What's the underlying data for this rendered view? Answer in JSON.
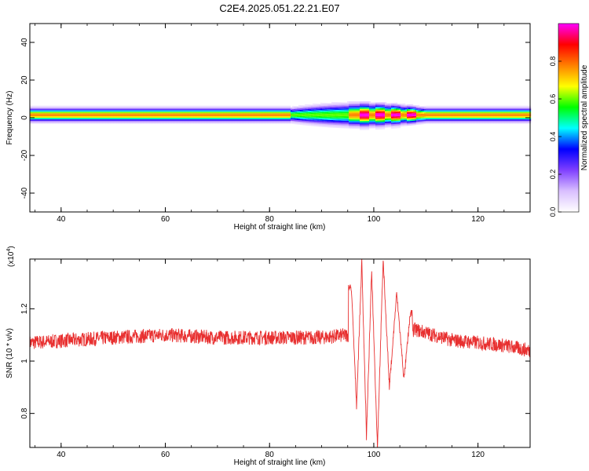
{
  "figure": {
    "title": "C2E4.2025.051.22.21.E07"
  },
  "chart_data": [
    {
      "type": "heatmap",
      "xlabel": "Height of straight line (km)",
      "ylabel": "Frequency (Hz)",
      "xlim": [
        34,
        130
      ],
      "ylim": [
        -50,
        50
      ],
      "xticks": [
        40,
        60,
        80,
        100,
        120
      ],
      "yticks": [
        -40,
        -20,
        0,
        20,
        40
      ],
      "grid": false,
      "description_of_energy": {
        "band_center_hz": 1.5,
        "band_halfwidth_hz": 4,
        "broadening_region_km": [
          84,
          110
        ],
        "hotspots_km": [
          98,
          101,
          104,
          107
        ]
      },
      "colorbar": {
        "label": "Normalized spectral amplitude",
        "range": [
          0,
          1
        ],
        "ticks": [
          0.0,
          0.2,
          0.4,
          0.6,
          0.8
        ],
        "colors": [
          "#ffffff",
          "#d9bfff",
          "#7f3fff",
          "#0000ff",
          "#00ffff",
          "#00ff00",
          "#ffff00",
          "#ff8000",
          "#ff0000",
          "#ff00ff"
        ]
      }
    },
    {
      "type": "line",
      "xlabel": "Height of straight line (km)",
      "ylabel": "SNR (10 * v/v)",
      "yscale_label": "(x10",
      "yscale_exp": "4",
      "yscale_close": ")",
      "xlim": [
        34,
        130
      ],
      "ylim": [
        0.67,
        1.39
      ],
      "xticks": [
        40,
        60,
        80,
        100,
        120
      ],
      "yticks": [
        0.8,
        1.0,
        1.2
      ],
      "line_color": "#e83030",
      "baseline_points": {
        "x": [
          34,
          50,
          60,
          70,
          80,
          90,
          95,
          108,
          115,
          120,
          125,
          130
        ],
        "y": [
          1.07,
          1.09,
          1.1,
          1.09,
          1.09,
          1.09,
          1.1,
          1.12,
          1.08,
          1.07,
          1.06,
          1.04
        ]
      },
      "oscillation_peaks": {
        "x": [
          95.7,
          96.7,
          97.7,
          98.6,
          99.6,
          100.7,
          101.8,
          103.0,
          104.4,
          105.8,
          107.0
        ],
        "y": [
          1.28,
          0.83,
          1.38,
          0.71,
          1.35,
          0.67,
          1.39,
          0.9,
          1.26,
          0.93,
          1.18
        ]
      }
    }
  ]
}
